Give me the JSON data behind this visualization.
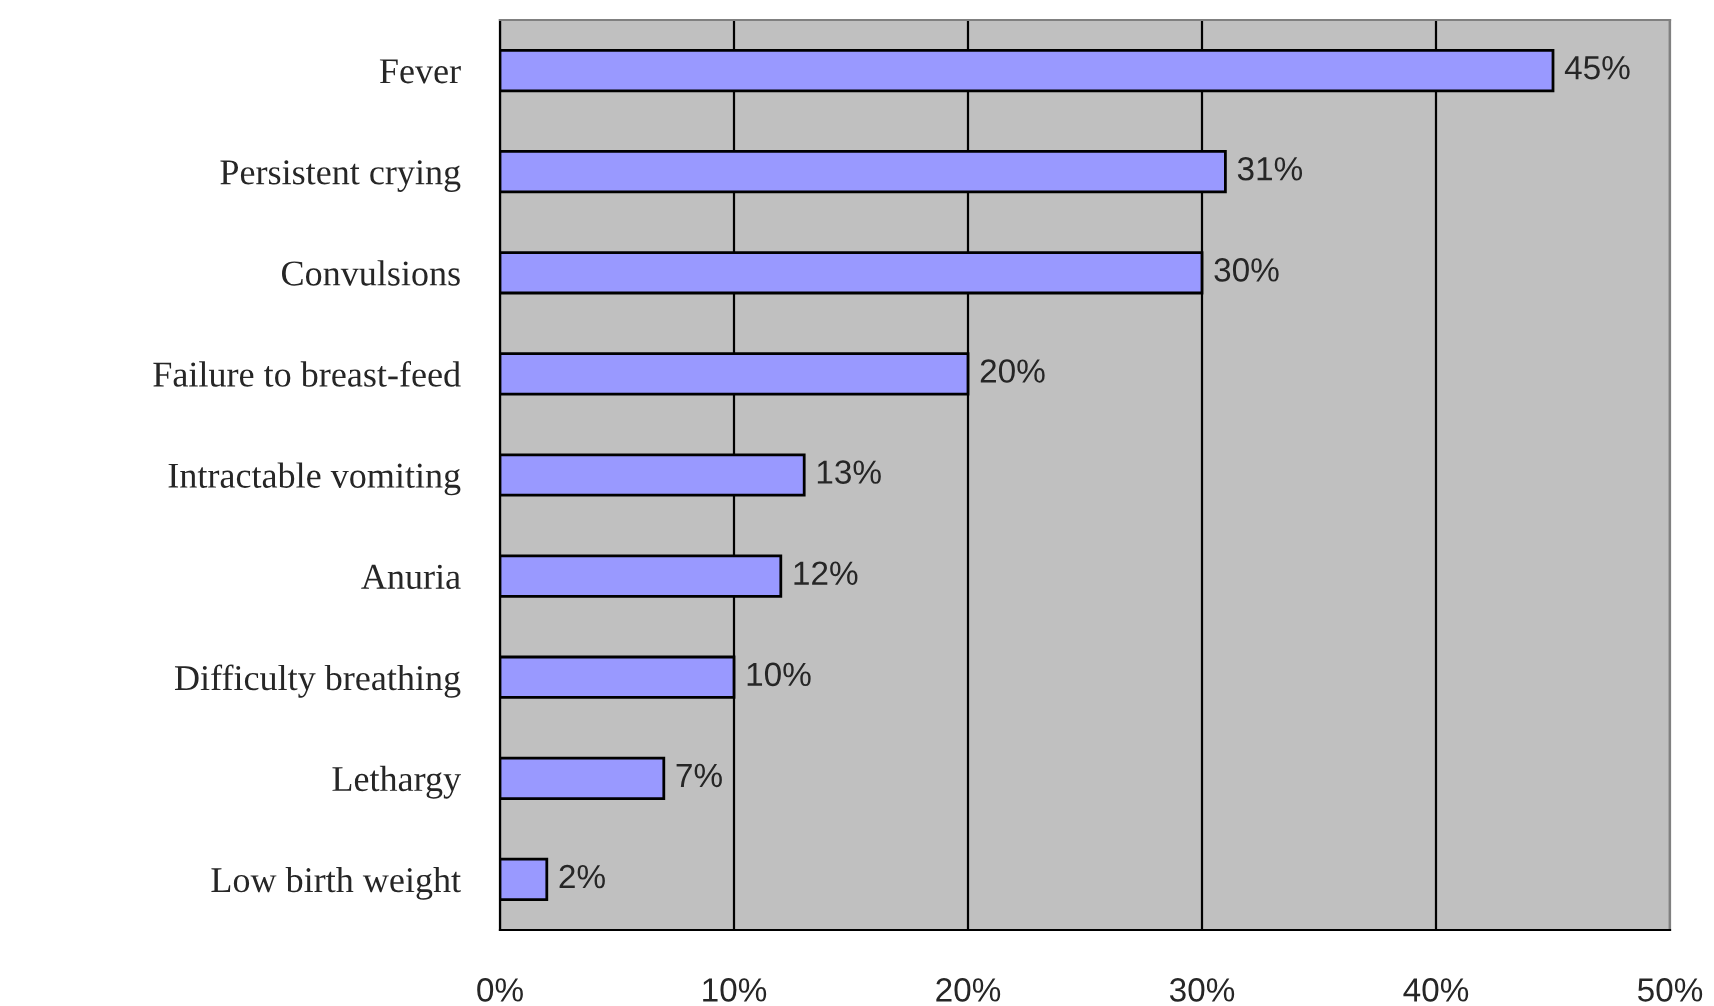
{
  "chart_data": {
    "type": "bar",
    "orientation": "horizontal",
    "categories": [
      "Fever",
      "Persistent crying",
      "Convulsions",
      "Failure to breast-feed",
      "Intractable vomiting",
      "Anuria",
      "Difficulty breathing",
      "Lethargy",
      "Low birth weight"
    ],
    "values": [
      45,
      31,
      30,
      20,
      13,
      12,
      10,
      7,
      2
    ],
    "value_labels": [
      "45%",
      "31%",
      "30%",
      "20%",
      "13%",
      "12%",
      "10%",
      "7%",
      "2%"
    ],
    "color": "#9999ff",
    "xlim": [
      0,
      50
    ],
    "xticks": [
      {
        "value": 0,
        "label": "0%"
      },
      {
        "value": 10,
        "label": "10%"
      },
      {
        "value": 20,
        "label": "20%"
      },
      {
        "value": 30,
        "label": "30%"
      },
      {
        "value": 40,
        "label": "40%"
      },
      {
        "value": 50,
        "label": "50%"
      }
    ],
    "grid": "x"
  }
}
